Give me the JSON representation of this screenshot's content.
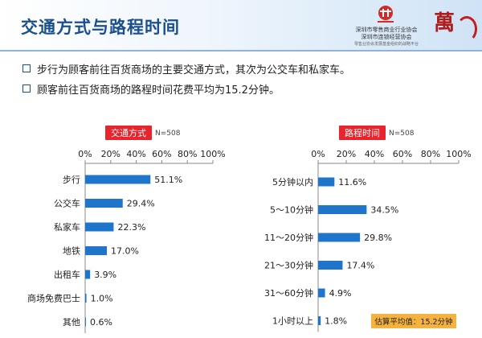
{
  "header": {
    "title": "交通方式与路程时间",
    "logo_lines": [
      "深圳市零售商业行业协会",
      "深圳市连锁经营协会",
      "零售业协会发展基金组织的战略平台"
    ],
    "logo2_glyph": "萬"
  },
  "bullets": [
    "步行为顾客前往百货商场的主要交通方式，其次为公交车和私家车。",
    "顾客前往百货商场的路程时间花费平均为15.2分钟。"
  ],
  "colors": {
    "bar": "#1f75c9",
    "label_bg": "#e8242c",
    "title": "#1a4f8e",
    "note_bg": "#f5b23e"
  },
  "chart_data": [
    {
      "type": "bar",
      "orientation": "horizontal",
      "title": "交通方式",
      "sample_note": "N=508",
      "xlim": [
        0,
        100
      ],
      "ticks": [
        "0%",
        "20%",
        "40%",
        "60%",
        "80%",
        "100%"
      ],
      "categories": [
        "步行",
        "公交车",
        "私家车",
        "地铁",
        "出租车",
        "商场免费巴士",
        "其他"
      ],
      "values": [
        51.1,
        29.4,
        22.3,
        17.0,
        3.9,
        1.0,
        0.6
      ],
      "value_labels": [
        "51.1%",
        "29.4%",
        "22.3%",
        "17.0%",
        "3.9%",
        "1.0%",
        "0.6%"
      ]
    },
    {
      "type": "bar",
      "orientation": "horizontal",
      "title": "路程时间",
      "sample_note": "N=508",
      "xlim": [
        0,
        100
      ],
      "ticks": [
        "0%",
        "20%",
        "40%",
        "60%",
        "80%",
        "100%"
      ],
      "categories": [
        "5分钟以内",
        "5～10分钟",
        "11～20分钟",
        "21～30分钟",
        "31～60分钟",
        "1小时以上"
      ],
      "values": [
        11.6,
        34.5,
        29.8,
        17.4,
        4.9,
        1.8
      ],
      "value_labels": [
        "11.6%",
        "34.5%",
        "29.8%",
        "17.4%",
        "4.9%",
        "1.8%"
      ],
      "note": "估算平均值：15.2分钟"
    }
  ]
}
